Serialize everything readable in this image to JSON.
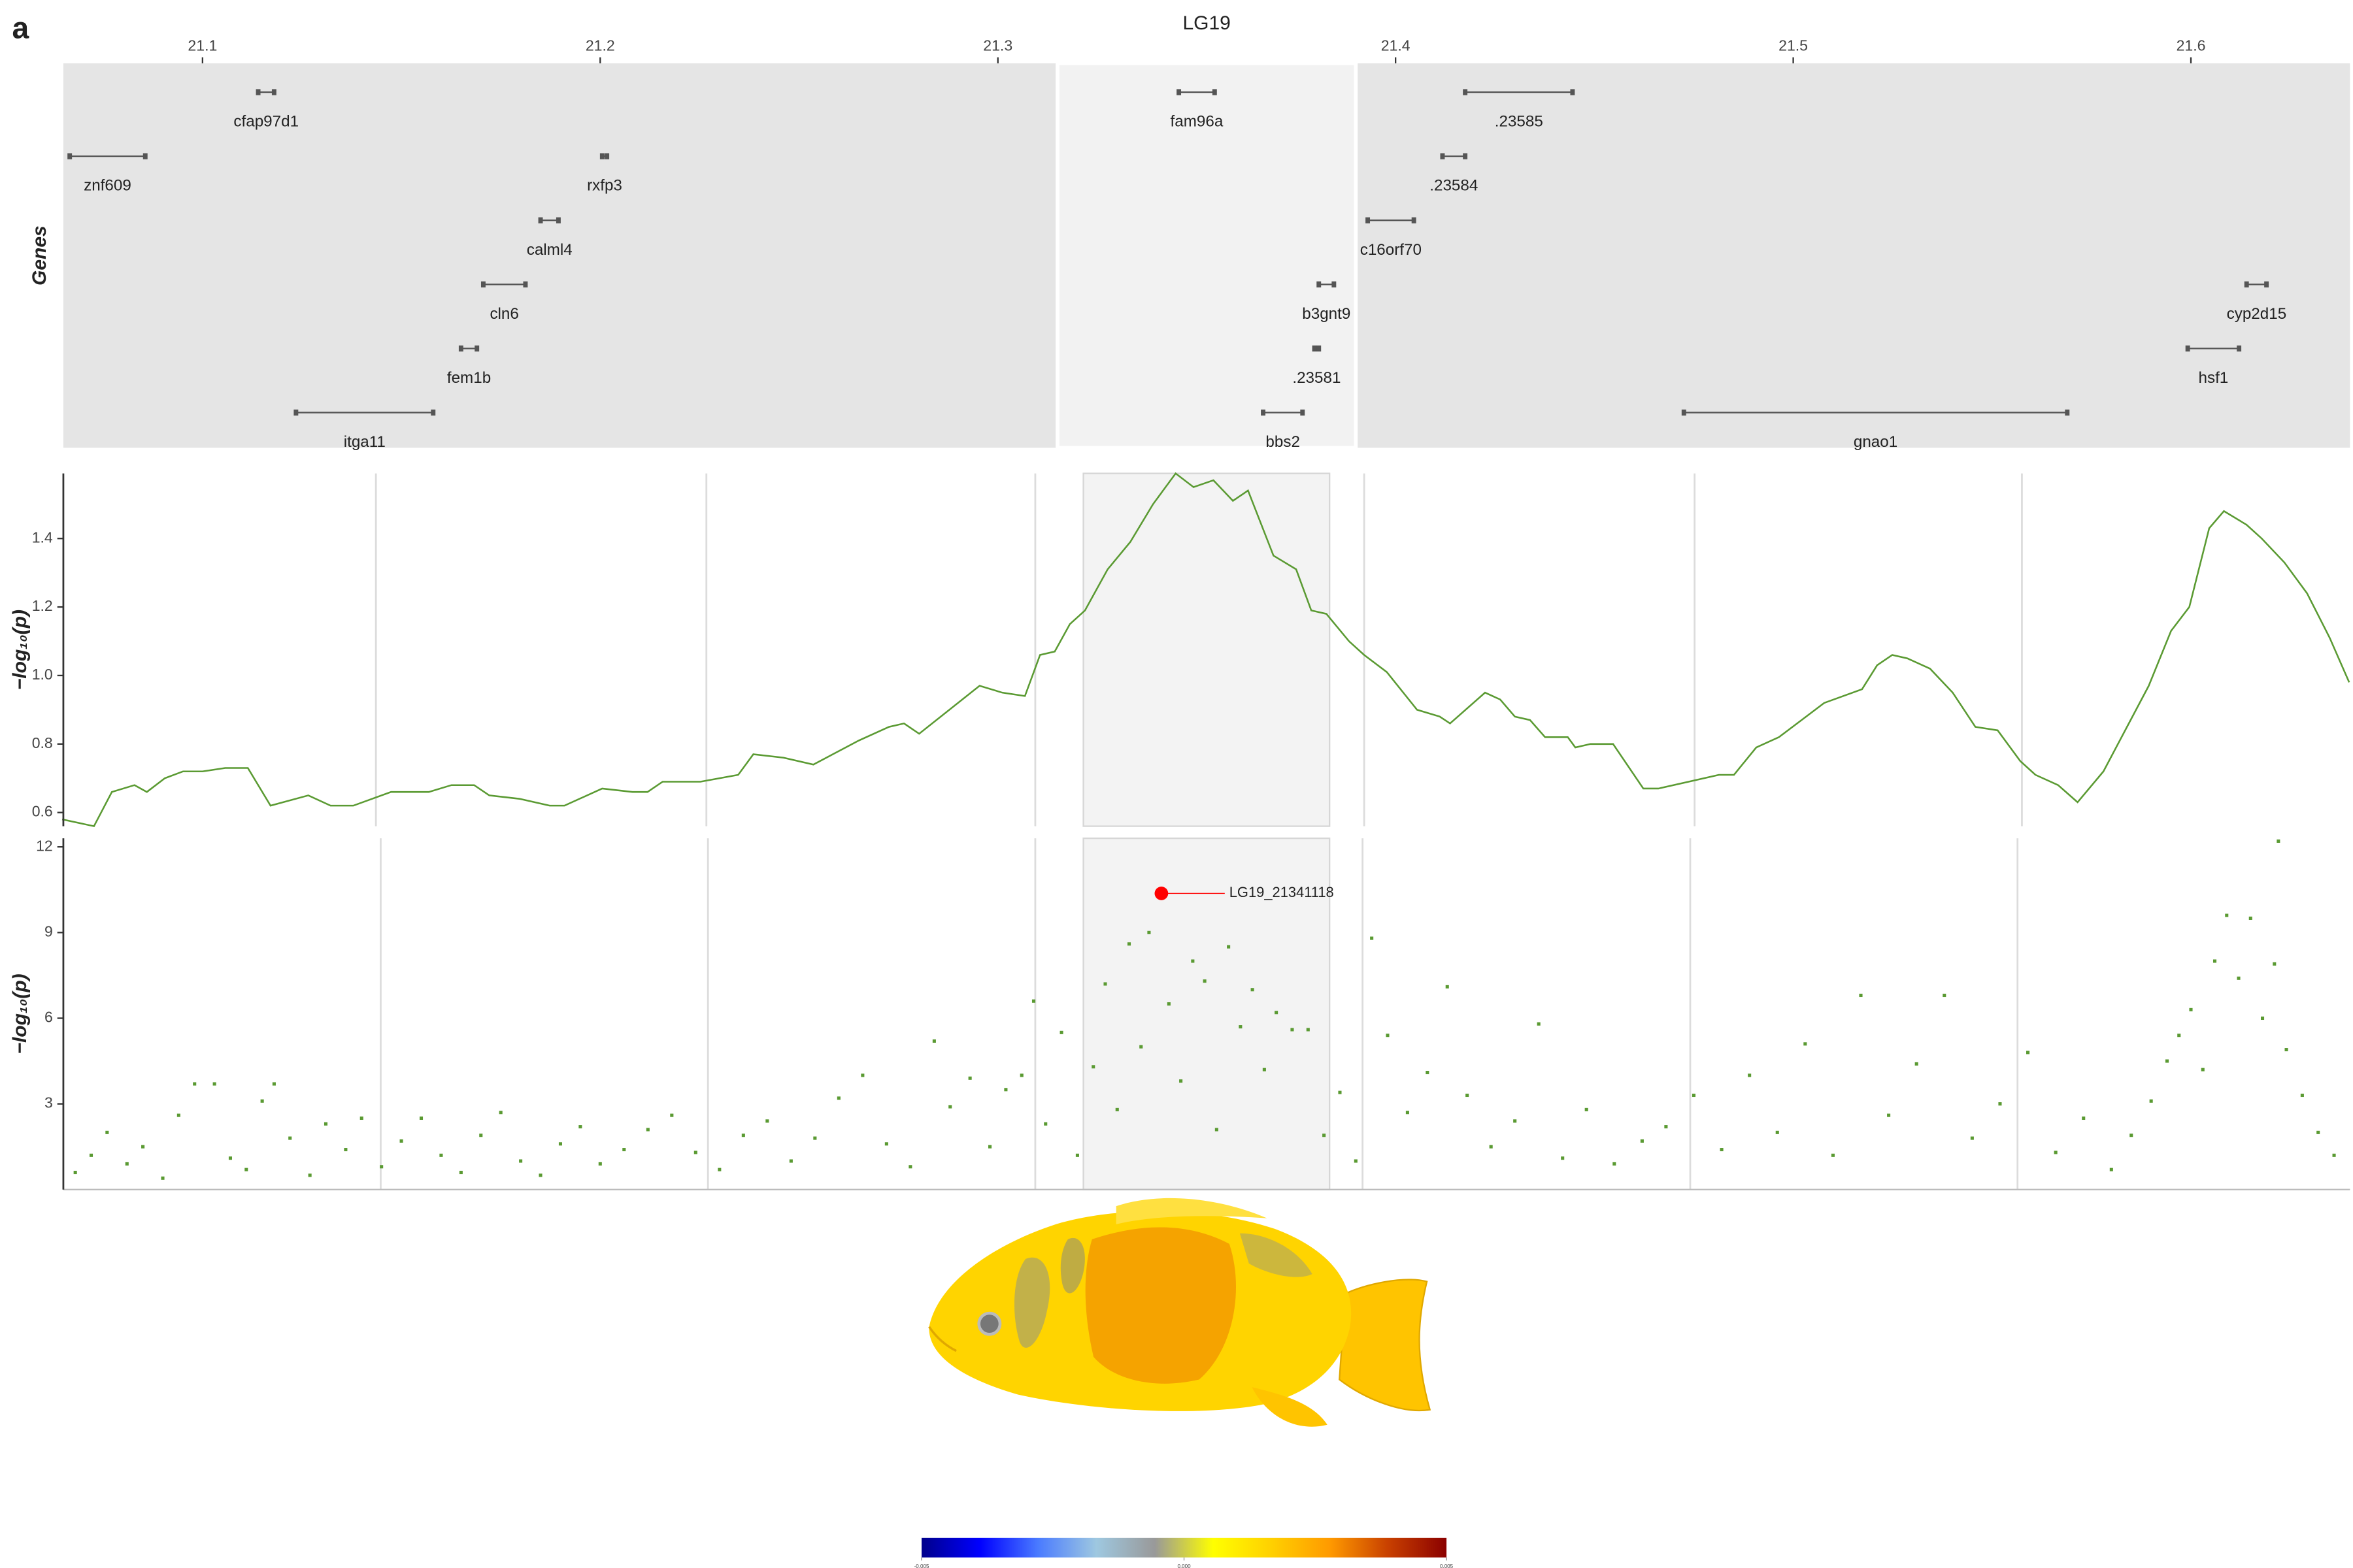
{
  "panel_label": "a",
  "chart_data": [
    {
      "type": "gene-track",
      "title": "LG19",
      "ylabel": "Genes",
      "xlim": [
        21.065,
        21.64
      ],
      "xticks": [
        21.1,
        21.2,
        21.3,
        21.4,
        21.5,
        21.6
      ],
      "highlight": [
        21.315,
        21.39
      ],
      "color": "#555555",
      "lanes": [
        [
          {
            "name": "cfap97d1",
            "start": 21.114,
            "end": 21.118
          },
          {
            "name": "fam96a",
            "start": 21.3455,
            "end": 21.3545
          },
          {
            "name": ".23585",
            "start": 21.4175,
            "end": 21.4445
          }
        ],
        [
          {
            "name": "znf609",
            "start": 21.0666,
            "end": 21.0856
          },
          {
            "name": "rxfp3",
            "start": 21.2005,
            "end": 21.2017
          },
          {
            "name": ".23584",
            "start": 21.4118,
            "end": 21.4175
          }
        ],
        [
          {
            "name": "calml4",
            "start": 21.185,
            "end": 21.1895
          },
          {
            "name": "c16orf70",
            "start": 21.393,
            "end": 21.4046
          }
        ],
        [
          {
            "name": "cln6",
            "start": 21.1706,
            "end": 21.1812
          },
          {
            "name": "b3gnt9",
            "start": 21.3807,
            "end": 21.3845
          },
          {
            "name": "cyp2d15",
            "start": 21.614,
            "end": 21.619
          }
        ],
        [
          {
            "name": "fem1b",
            "start": 21.165,
            "end": 21.169
          },
          {
            "name": ".23581",
            "start": 21.3796,
            "end": 21.3807
          },
          {
            "name": "hsf1",
            "start": 21.5992,
            "end": 21.6121
          }
        ],
        [
          {
            "name": "itga11",
            "start": 21.1235,
            "end": 21.158
          },
          {
            "name": "bbs2",
            "start": 21.3667,
            "end": 21.3766
          },
          {
            "name": "gnao1",
            "start": 21.4725,
            "end": 21.5689
          }
        ]
      ]
    },
    {
      "type": "line",
      "ylabel": "−log₁₀(p)",
      "color": "#5a9a32",
      "xlim": [
        21.065,
        21.64
      ],
      "ylim": [
        0.56,
        1.59
      ],
      "yticks": [
        0.6,
        0.8,
        {
          "value": 1,
          "label": "1.0"
        },
        1.2,
        1.4
      ],
      "highlight": [
        21.3215,
        21.3834
      ],
      "xgrid": [
        21.1436,
        21.2267,
        21.3094,
        21.3921,
        21.4752,
        21.5575
      ],
      "x": [
        21.0647,
        21.0727,
        21.0772,
        21.0829,
        21.086,
        21.0905,
        21.0951,
        21.1,
        21.1057,
        21.1114,
        21.1171,
        21.1266,
        21.1322,
        21.1379,
        21.1474,
        21.1569,
        21.1626,
        21.1683,
        21.1721,
        21.1797,
        21.1873,
        21.191,
        21.2005,
        21.2081,
        21.2119,
        21.2157,
        21.2252,
        21.2347,
        21.2385,
        21.2461,
        21.2536,
        21.265,
        21.2726,
        21.2764,
        21.2802,
        21.2878,
        21.2954,
        21.3011,
        21.3068,
        21.3106,
        21.3143,
        21.3181,
        21.3219,
        21.3276,
        21.3333,
        21.339,
        21.3447,
        21.3492,
        21.3542,
        21.3591,
        21.3629,
        21.3693,
        21.375,
        21.3788,
        21.3826,
        21.3883,
        21.3921,
        21.3978,
        21.4054,
        21.4111,
        21.4137,
        21.4225,
        21.4263,
        21.43,
        21.4338,
        21.4376,
        21.4433,
        21.4452,
        21.449,
        21.4547,
        21.4623,
        21.4661,
        21.4737,
        21.4813,
        21.4851,
        21.4907,
        21.4964,
        21.5021,
        21.5078,
        21.5173,
        21.5211,
        21.5249,
        21.5287,
        21.5344,
        21.5401,
        21.5458,
        21.5514,
        21.5571,
        21.5609,
        21.5666,
        21.5715,
        21.578,
        21.5894,
        21.595,
        21.5996,
        21.6046,
        21.6083,
        21.614,
        21.6178,
        21.6235,
        21.6292,
        21.6349,
        21.6398
      ],
      "values": [
        0.58,
        0.56,
        0.66,
        0.68,
        0.66,
        0.7,
        0.72,
        0.72,
        0.73,
        0.73,
        0.62,
        0.65,
        0.62,
        0.62,
        0.66,
        0.66,
        0.68,
        0.68,
        0.65,
        0.64,
        0.62,
        0.62,
        0.67,
        0.66,
        0.66,
        0.69,
        0.69,
        0.71,
        0.77,
        0.76,
        0.74,
        0.81,
        0.85,
        0.86,
        0.83,
        0.9,
        0.97,
        0.95,
        0.94,
        1.06,
        1.07,
        1.15,
        1.19,
        1.31,
        1.39,
        1.5,
        1.59,
        1.55,
        1.57,
        1.51,
        1.54,
        1.35,
        1.31,
        1.19,
        1.18,
        1.1,
        1.06,
        1.01,
        0.9,
        0.88,
        0.86,
        0.95,
        0.93,
        0.88,
        0.87,
        0.82,
        0.82,
        0.79,
        0.8,
        0.8,
        0.67,
        0.67,
        0.69,
        0.71,
        0.71,
        0.79,
        0.82,
        0.87,
        0.92,
        0.96,
        1.03,
        1.06,
        1.05,
        1.02,
        0.95,
        0.85,
        0.84,
        0.75,
        0.71,
        0.68,
        0.63,
        0.72,
        0.97,
        1.13,
        1.2,
        1.43,
        1.48,
        1.44,
        1.4,
        1.33,
        1.24,
        1.11,
        0.98
      ]
    },
    {
      "type": "scatter",
      "ylabel": "−log₁₀(p)",
      "color": "#5a9a32",
      "xlim": [
        21.065,
        21.64
      ],
      "ylim": [
        0,
        12.3
      ],
      "yticks": [
        3,
        6,
        9,
        12
      ],
      "highlight": [
        21.3215,
        21.3834
      ],
      "xgrid": [
        21.1448,
        21.2271,
        21.3094,
        21.3917,
        21.4741,
        21.5564
      ],
      "x": [
        21.068,
        21.072,
        21.076,
        21.081,
        21.085,
        21.09,
        21.094,
        21.098,
        21.103,
        21.107,
        21.111,
        21.115,
        21.118,
        21.122,
        21.127,
        21.131,
        21.136,
        21.14,
        21.145,
        21.15,
        21.155,
        21.16,
        21.165,
        21.17,
        21.175,
        21.18,
        21.185,
        21.19,
        21.195,
        21.2,
        21.206,
        21.212,
        21.218,
        21.224,
        21.23,
        21.236,
        21.242,
        21.248,
        21.254,
        21.26,
        21.266,
        21.272,
        21.278,
        21.284,
        21.288,
        21.293,
        21.298,
        21.302,
        21.306,
        21.309,
        21.312,
        21.316,
        21.32,
        21.324,
        21.327,
        21.33,
        21.333,
        21.336,
        21.338,
        21.343,
        21.346,
        21.349,
        21.352,
        21.355,
        21.358,
        21.361,
        21.364,
        21.367,
        21.37,
        21.374,
        21.378,
        21.382,
        21.386,
        21.39,
        21.394,
        21.398,
        21.403,
        21.408,
        21.413,
        21.418,
        21.424,
        21.43,
        21.436,
        21.442,
        21.448,
        21.455,
        21.462,
        21.468,
        21.475,
        21.482,
        21.489,
        21.496,
        21.503,
        21.51,
        21.517,
        21.524,
        21.531,
        21.538,
        21.545,
        21.552,
        21.559,
        21.566,
        21.573,
        21.58,
        21.585,
        21.59,
        21.594,
        21.597,
        21.6,
        21.603,
        21.606,
        21.609,
        21.612,
        21.615,
        21.618,
        21.621,
        21.622,
        21.624,
        21.628,
        21.632,
        21.636
      ],
      "values": [
        0.6,
        1.2,
        2.0,
        0.9,
        1.5,
        0.4,
        2.6,
        3.7,
        3.7,
        1.1,
        0.7,
        3.1,
        3.7,
        1.8,
        0.5,
        2.3,
        1.4,
        2.5,
        0.8,
        1.7,
        2.5,
        1.2,
        0.6,
        1.9,
        2.7,
        1.0,
        0.5,
        1.6,
        2.2,
        0.9,
        1.4,
        2.1,
        2.6,
        1.3,
        0.7,
        1.9,
        2.4,
        1.0,
        1.8,
        3.2,
        4.0,
        1.6,
        0.8,
        5.2,
        2.9,
        3.9,
        1.5,
        3.5,
        4.0,
        6.6,
        2.3,
        5.5,
        1.2,
        4.3,
        7.2,
        2.8,
        8.6,
        5.0,
        9.0,
        6.5,
        3.8,
        8.0,
        7.3,
        2.1,
        8.5,
        5.7,
        7.0,
        4.2,
        6.2,
        5.6,
        5.6,
        1.9,
        3.4,
        1.0,
        8.8,
        5.4,
        2.7,
        4.1,
        7.1,
        3.3,
        1.5,
        2.4,
        5.8,
        1.1,
        2.8,
        0.9,
        1.7,
        2.2,
        3.3,
        1.4,
        4.0,
        2.0,
        5.1,
        1.2,
        6.8,
        2.6,
        4.4,
        6.8,
        1.8,
        3.0,
        4.8,
        1.3,
        2.5,
        0.7,
        1.9,
        3.1,
        4.5,
        5.4,
        6.3,
        4.2,
        8.0,
        9.6,
        7.4,
        9.5,
        6.0,
        7.9,
        12.2,
        4.9,
        3.3,
        2.0,
        1.2
      ],
      "top_hit": {
        "label": "LG19_21341118",
        "x": 21.341118,
        "value": 10.37,
        "color": "#ff0000"
      }
    }
  ],
  "colorbar": {
    "lim": [
      -0.005,
      0.005
    ],
    "ticks": [
      -0.005,
      {
        "value": 0,
        "label": "0.000"
      },
      0.005
    ],
    "colors": [
      "#00008b",
      "#0000ff",
      "#4a7bff",
      "#9ec8e0",
      "#999999",
      "#ffff00",
      "#ffd000",
      "#ff9a00",
      "#c84000",
      "#8b0000"
    ]
  }
}
